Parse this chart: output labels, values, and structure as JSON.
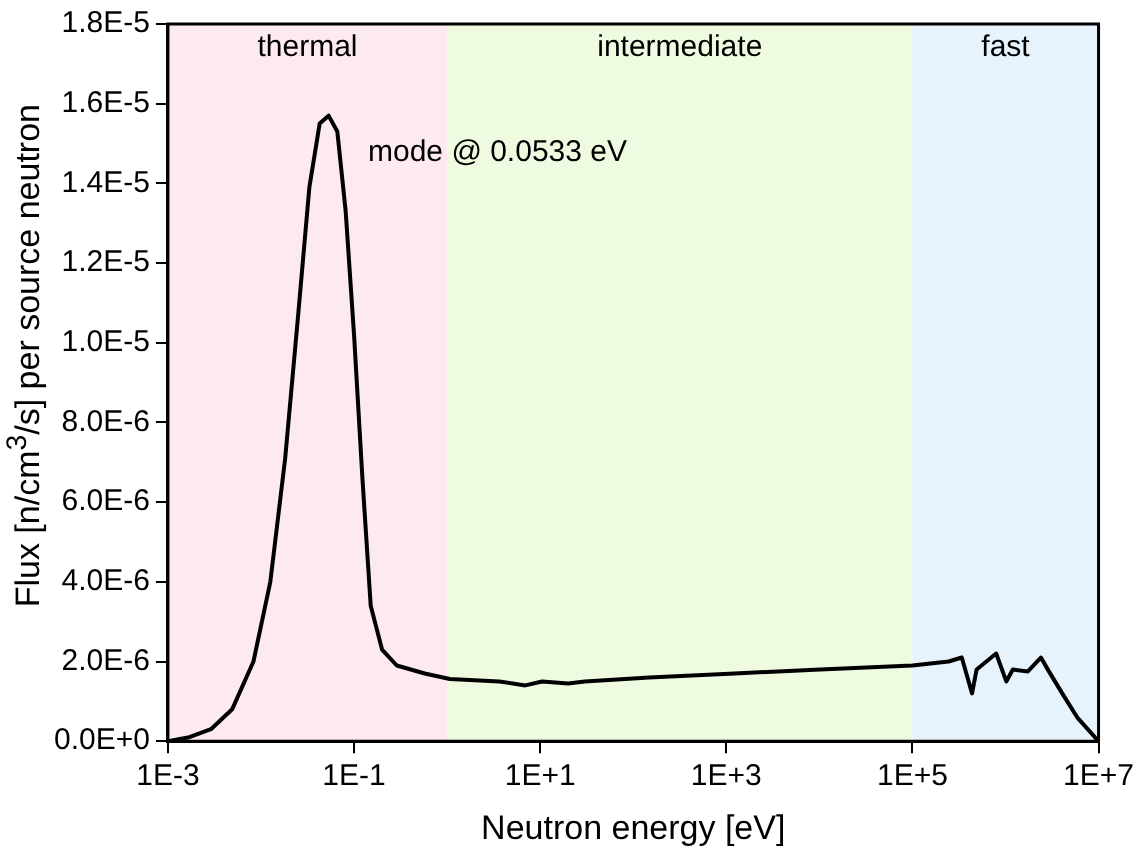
{
  "chart_data": {
    "type": "line",
    "xlabel": "Neutron energy [eV]",
    "ylabel": "Flux [n/cm$^{3}$/s] per source neutron",
    "log": "x",
    "grid": false,
    "legend": false,
    "marker": "none",
    "line_style": "solid",
    "xlim": [
      0.001,
      10000000
    ],
    "ylim": [
      0,
      1.8e-05
    ],
    "xticks": [
      {
        "value": 0.001,
        "label": "1E-3"
      },
      {
        "value": 0.1,
        "label": "1E-1"
      },
      {
        "value": 10,
        "label": "1E+1"
      },
      {
        "value": 1000,
        "label": "1E+3"
      },
      {
        "value": 100000,
        "label": "1E+5"
      },
      {
        "value": 10000000,
        "label": "1E+7"
      }
    ],
    "yticks": [
      {
        "value": 0,
        "label": "0.0E+0"
      },
      {
        "value": 2e-06,
        "label": "2.0E-6"
      },
      {
        "value": 4e-06,
        "label": "4.0E-6"
      },
      {
        "value": 6e-06,
        "label": "6.0E-6"
      },
      {
        "value": 8e-06,
        "label": "8.0E-6"
      },
      {
        "value": 1e-05,
        "label": "1.0E-5"
      },
      {
        "value": 1.2e-05,
        "label": "1.2E-5"
      },
      {
        "value": 1.4e-05,
        "label": "1.4E-5"
      },
      {
        "value": 1.6e-05,
        "label": "1.6E-5"
      },
      {
        "value": 1.8e-05,
        "label": "1.8E-5"
      }
    ],
    "bands": [
      {
        "axis": "x",
        "from": 0.001,
        "to": 1,
        "label": "thermal",
        "color": "#fde9f1"
      },
      {
        "axis": "x",
        "from": 1,
        "to": 100000,
        "label": "intermediate",
        "color": "#effbe1"
      },
      {
        "axis": "x",
        "from": 100000,
        "to": 10000000,
        "label": "fast",
        "color": "#e6f3fd"
      }
    ],
    "annotations": [
      "mode @ 0.0533 eV"
    ],
    "series": [
      {
        "color": "#000000",
        "x": [
          0.001,
          0.0017,
          0.0029,
          0.0049,
          0.0083,
          0.0126,
          0.0182,
          0.0251,
          0.0331,
          0.0427,
          0.0533,
          0.0661,
          0.0813,
          0.1,
          0.123,
          0.151,
          0.2,
          0.288,
          0.575,
          1.07,
          3.63,
          6.92,
          10.5,
          20,
          30.2,
          148,
          1230,
          10200,
          100000,
          245000,
          339000,
          437000,
          490000,
          794000,
          1020000,
          1200000,
          1740000,
          2400000,
          2950000,
          4070000,
          5890000,
          10000000
        ],
        "values": [
          0,
          1e-07,
          3e-07,
          8e-07,
          2e-06,
          4e-06,
          7.1e-06,
          1.07e-05,
          1.39e-05,
          1.55e-05,
          1.57e-05,
          1.53e-05,
          1.33e-05,
          1.02e-05,
          6.6e-06,
          3.4e-06,
          2.3e-06,
          1.9e-06,
          1.7e-06,
          1.56e-06,
          1.5e-06,
          1.4e-06,
          1.5e-06,
          1.45e-06,
          1.5e-06,
          1.6e-06,
          1.7e-06,
          1.8e-06,
          1.9e-06,
          2e-06,
          2.1e-06,
          1.2e-06,
          1.8e-06,
          2.2e-06,
          1.5e-06,
          1.8e-06,
          1.75e-06,
          2.1e-06,
          1.74e-06,
          1.2e-06,
          6e-07,
          0
        ]
      }
    ]
  }
}
